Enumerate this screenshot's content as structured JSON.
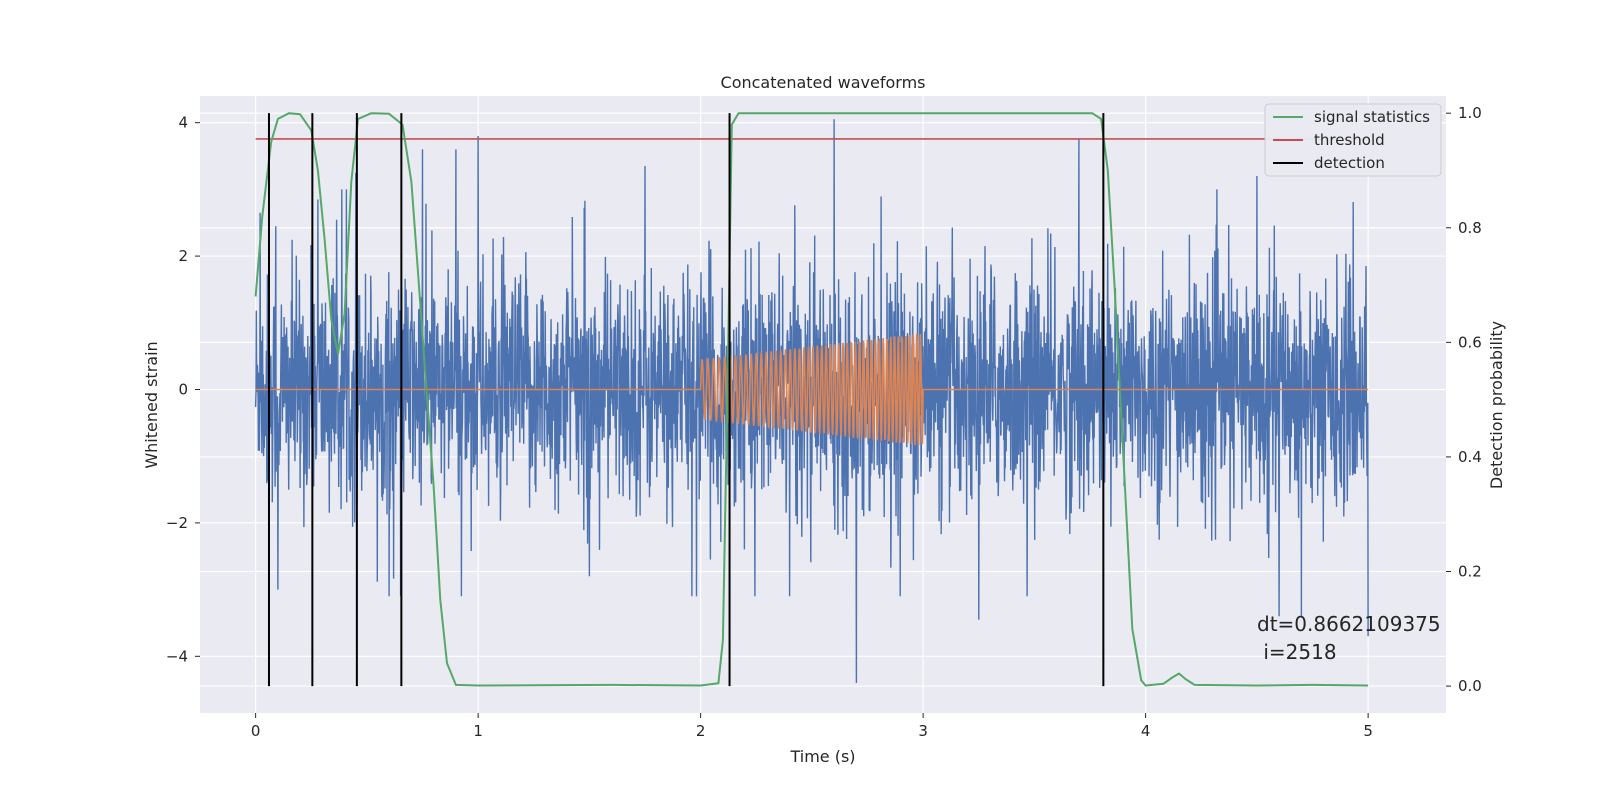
{
  "chart_data": {
    "type": "line",
    "title": "Concatenated waveforms",
    "xlabel": "Time (s)",
    "ylabel": "Whitened strain",
    "y2label": "Detection probability",
    "xlim": [
      -0.25,
      5.35
    ],
    "ylim": [
      -4.85,
      4.4
    ],
    "y2lim": [
      -0.047,
      1.03
    ],
    "xticks": [
      0,
      1,
      2,
      3,
      4,
      5
    ],
    "yticks": [
      -4,
      -2,
      0,
      2,
      4
    ],
    "y2ticks": [
      0.0,
      0.2,
      0.4,
      0.6,
      0.8,
      1.0
    ],
    "grid": true,
    "legend_position": "upper right",
    "legend": [
      {
        "label": "signal statistics",
        "color": "#55a868"
      },
      {
        "label": "threshold",
        "color": "#c44e52"
      },
      {
        "label": "detection",
        "color": "#000000"
      }
    ],
    "series": [
      {
        "name": "whitened strain",
        "color": "#4c72b0",
        "axis": "left",
        "description": "noise, roughly |y|<3 with spikes",
        "x_range": [
          0,
          5
        ],
        "spikes": [
          [
            0.02,
            2.65
          ],
          [
            0.09,
            2.45
          ],
          [
            0.28,
            2.85
          ],
          [
            0.45,
            3.25
          ],
          [
            0.75,
            3.6
          ],
          [
            0.9,
            3.6
          ],
          [
            1.0,
            3.8
          ],
          [
            1.5,
            3.55
          ],
          [
            1.75,
            3.35
          ],
          [
            2.6,
            4.05
          ],
          [
            2.7,
            -4.4
          ],
          [
            3.7,
            3.75
          ],
          [
            4.5,
            3.2
          ],
          [
            4.6,
            -3.4
          ],
          [
            5.0,
            -3.7
          ],
          [
            0.1,
            -3.0
          ],
          [
            0.6,
            -3.1
          ],
          [
            1.5,
            -2.8
          ],
          [
            2.4,
            -3.1
          ],
          [
            3.25,
            -3.45
          ],
          [
            4.7,
            -3.4
          ]
        ]
      },
      {
        "name": "injected signal",
        "color": "#dd8452",
        "axis": "left",
        "chirp_start": 2.0,
        "chirp_end": 3.0,
        "amplitude_start": 0.45,
        "amplitude_end": 0.85
      },
      {
        "name": "signal statistics",
        "color": "#55a868",
        "axis": "right",
        "points": [
          [
            0.0,
            0.68
          ],
          [
            0.03,
            0.82
          ],
          [
            0.07,
            0.95
          ],
          [
            0.1,
            0.99
          ],
          [
            0.15,
            1.0
          ],
          [
            0.2,
            0.998
          ],
          [
            0.25,
            0.97
          ],
          [
            0.28,
            0.9
          ],
          [
            0.31,
            0.78
          ],
          [
            0.34,
            0.64
          ],
          [
            0.37,
            0.58
          ],
          [
            0.4,
            0.65
          ],
          [
            0.43,
            0.88
          ],
          [
            0.46,
            0.99
          ],
          [
            0.52,
            1.0
          ],
          [
            0.6,
            0.999
          ],
          [
            0.66,
            0.98
          ],
          [
            0.7,
            0.88
          ],
          [
            0.73,
            0.72
          ],
          [
            0.76,
            0.56
          ],
          [
            0.8,
            0.35
          ],
          [
            0.83,
            0.15
          ],
          [
            0.86,
            0.04
          ],
          [
            0.9,
            0.002
          ],
          [
            1.0,
            0.001
          ],
          [
            1.6,
            0.002
          ],
          [
            2.0,
            0.001
          ],
          [
            2.08,
            0.005
          ],
          [
            2.1,
            0.08
          ],
          [
            2.12,
            0.5
          ],
          [
            2.14,
            0.98
          ],
          [
            2.17,
            1.0
          ],
          [
            2.4,
            1.0
          ],
          [
            3.0,
            1.0
          ],
          [
            3.5,
            1.0
          ],
          [
            3.76,
            1.0
          ],
          [
            3.8,
            0.99
          ],
          [
            3.83,
            0.9
          ],
          [
            3.86,
            0.7
          ],
          [
            3.9,
            0.4
          ],
          [
            3.94,
            0.1
          ],
          [
            3.98,
            0.01
          ],
          [
            4.0,
            0.001
          ],
          [
            4.08,
            0.004
          ],
          [
            4.12,
            0.015
          ],
          [
            4.15,
            0.022
          ],
          [
            4.18,
            0.012
          ],
          [
            4.22,
            0.002
          ],
          [
            4.5,
            0.001
          ],
          [
            4.75,
            0.002
          ],
          [
            5.0,
            0.001
          ]
        ]
      },
      {
        "name": "threshold",
        "color": "#c44e52",
        "axis": "right",
        "value": 0.955,
        "x_range": [
          0,
          5
        ]
      }
    ],
    "detections": [
      0.06,
      0.255,
      0.455,
      0.655,
      2.13,
      3.81
    ],
    "annotation": {
      "line1": "dt=0.8662109375",
      "line2": " i=2518",
      "x": 4.5,
      "y": 0.1
    }
  }
}
